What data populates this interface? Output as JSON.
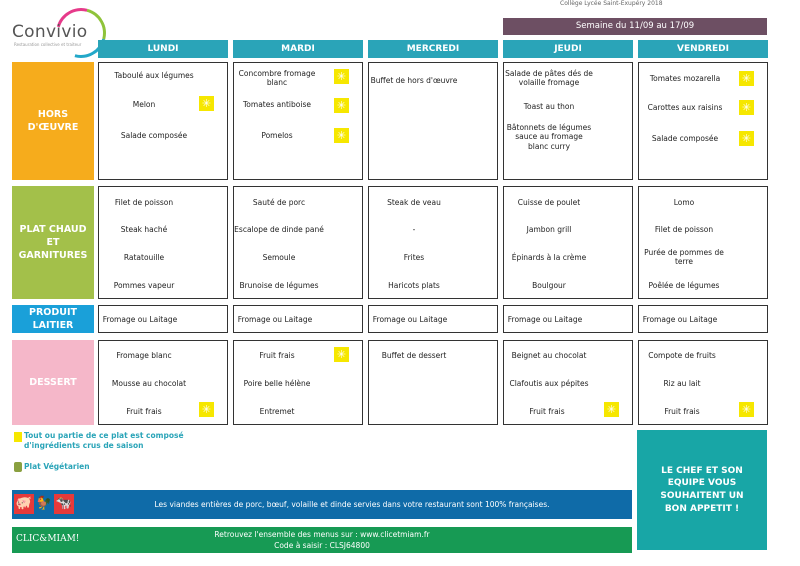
{
  "header": {
    "logo_text": "Convivio",
    "logo_tagline": "Restauration collective et traiteur",
    "top_snippet": "Collège Lycée Saint-Exupéry 2018",
    "week_label": "Semaine du 11/09 au 17/09"
  },
  "days": [
    "LUNDI",
    "MARDI",
    "MERCREDI",
    "JEUDI",
    "VENDREDI"
  ],
  "rows": {
    "hors": "HORS D'ŒUVRE",
    "plat": "PLAT CHAUD ET GARNITURES",
    "laitier": "PRODUIT LAITIER",
    "dessert": "DESSERT"
  },
  "menu": {
    "hors": {
      "lundi": [
        "Taboulé aux légumes",
        "Melon",
        "Salade composée"
      ],
      "mardi": [
        "Concombre fromage blanc",
        "Tomates antiboise",
        "Pomelos"
      ],
      "mercredi": [
        "Buffet de hors d'œuvre"
      ],
      "jeudi": [
        "Salade de pâtes dés de volaille fromage",
        "Toast au thon",
        "Bâtonnets de légumes sauce au fromage blanc curry"
      ],
      "vendredi": [
        "Tomates mozarella",
        "Carottes aux raisins",
        "Salade composée"
      ]
    },
    "plat": {
      "lundi": [
        "Filet de poisson",
        "Steak haché",
        "Ratatouille",
        "Pommes vapeur"
      ],
      "mardi": [
        "Sauté de porc",
        "Escalope de dinde pané",
        "Semoule",
        "Brunoise de légumes"
      ],
      "mercredi": [
        "Steak de veau",
        "-",
        "Frites",
        "Haricots plats"
      ],
      "jeudi": [
        "Cuisse de poulet",
        "Jambon grill",
        "Épinards à la crème",
        "Boulgour"
      ],
      "vendredi": [
        "Lomo",
        "Filet de poisson",
        "Purée de pommes de terre",
        "Poêlée de légumes"
      ]
    },
    "laitier": {
      "lundi": "Fromage ou Laitage",
      "mardi": "Fromage ou Laitage",
      "mercredi": "Fromage ou Laitage",
      "jeudi": "Fromage ou Laitage",
      "vendredi": "Fromage ou Laitage"
    },
    "dessert": {
      "lundi": [
        "Fromage blanc",
        "Mousse au chocolat",
        "Fruit frais"
      ],
      "mardi": [
        "Fruit frais",
        "Poire belle hélène",
        "Entremet"
      ],
      "mercredi": [
        "Buffet de dessert"
      ],
      "jeudi": [
        "Beignet au chocolat",
        "Clafoutis aux pépites",
        "Fruit frais"
      ],
      "vendredi": [
        "Compote de fruits",
        "Riz au lait",
        "Fruit frais"
      ]
    }
  },
  "legend": {
    "saison": "Tout ou partie de ce plat est composé d'ingrédients crus de saison",
    "vegetarien": "Plat Végétarien"
  },
  "chef_message": "LE CHEF ET SON EQUIPE VOUS SOUHAITENT UN BON APPETIT !",
  "footer": {
    "viandes": "Les viandes entières de porc, bœuf, volaille et dinde servies dans votre restaurant sont 100% françaises.",
    "site": "Retrouvez l'ensemble des menus sur : www.clicetmiam.fr",
    "code": "Code à saisir : CLSJ64800",
    "brand": "CLIC&MIAM!"
  },
  "colors": {
    "day_header": "#2aa4b8",
    "hors": "#f6ac1c",
    "plat": "#a3c04a",
    "laitier": "#1aa0d9",
    "dessert": "#f5b7c9",
    "season_icon": "#f6e700",
    "chef_box": "#18a6a6",
    "footer_blue": "#0f6ba8",
    "footer_green": "#179a54"
  },
  "icons": {
    "season": "sun-icon",
    "veg": "leaf-icon"
  }
}
